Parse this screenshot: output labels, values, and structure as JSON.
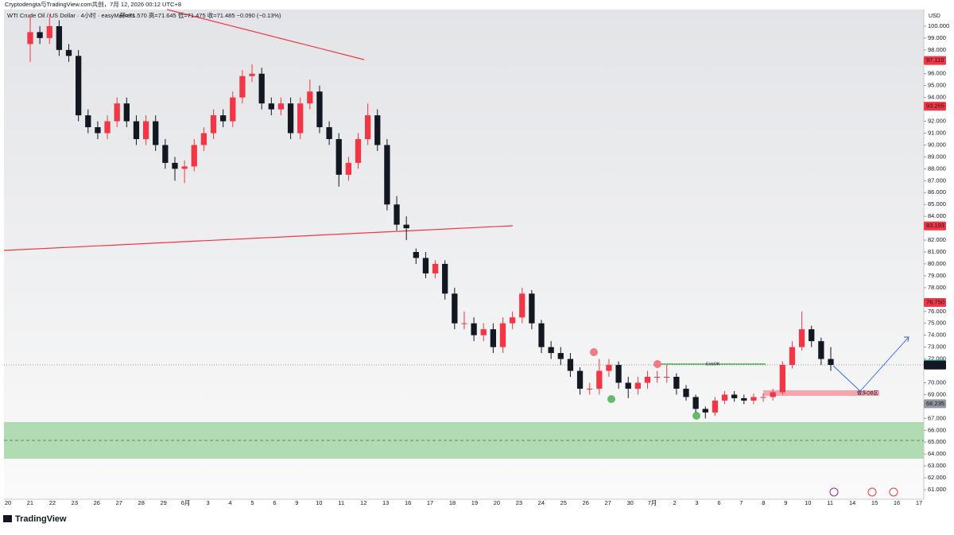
{
  "chart_data": {
    "type": "candlestick",
    "header": "Cryptodengta与TradingView.com共创，7月 12, 2026 00:12 UTC+8",
    "title": "WTI Crude Oil / US Dollar · 4小时 · easyMarkets",
    "ohlc_text": "开=71.570 高=71.645 低=71.475 收=71.485 −0.090 (−0.13%)",
    "currency": "USD",
    "brand": "TradingView",
    "up_color": "#f23645",
    "down_color": "#131722",
    "ylim": [
      60.2,
      101.4
    ],
    "yticks": [
      {
        "value": 61,
        "label": "61.000"
      },
      {
        "value": 62,
        "label": "62.000"
      },
      {
        "value": 63,
        "label": "63.000"
      },
      {
        "value": 64,
        "label": "64.000"
      },
      {
        "value": 65,
        "label": "65.000"
      },
      {
        "value": 66,
        "label": "66.000"
      },
      {
        "value": 67,
        "label": "67.000"
      },
      {
        "value": 69,
        "label": "69.000"
      },
      {
        "value": 70,
        "label": "70.000"
      },
      {
        "value": 72,
        "label": "72.000"
      },
      {
        "value": 73,
        "label": "73.000"
      },
      {
        "value": 74,
        "label": "74.000"
      },
      {
        "value": 75,
        "label": "75.000"
      },
      {
        "value": 76,
        "label": "76.000"
      },
      {
        "value": 78,
        "label": "78.000"
      },
      {
        "value": 79,
        "label": "79.000"
      },
      {
        "value": 80,
        "label": "80.000"
      },
      {
        "value": 81,
        "label": "81.000"
      },
      {
        "value": 82,
        "label": "82.000"
      },
      {
        "value": 84,
        "label": "84.000"
      },
      {
        "value": 85,
        "label": "85.000"
      },
      {
        "value": 86,
        "label": "86.000"
      },
      {
        "value": 87,
        "label": "87.000"
      },
      {
        "value": 88,
        "label": "88.000"
      },
      {
        "value": 89,
        "label": "89.000"
      },
      {
        "value": 90,
        "label": "90.000"
      },
      {
        "value": 91,
        "label": "91.000"
      },
      {
        "value": 92,
        "label": "92.000"
      },
      {
        "value": 94,
        "label": "94.000"
      },
      {
        "value": 95,
        "label": "95.000"
      },
      {
        "value": 96,
        "label": "96.000"
      },
      {
        "value": 98,
        "label": "98.000"
      },
      {
        "value": 99,
        "label": "99.000"
      },
      {
        "value": 100,
        "label": "100.000"
      }
    ],
    "price_labels": [
      {
        "value": 97.11,
        "label": "97.110",
        "color": "#f23645"
      },
      {
        "value": 93.265,
        "label": "93.265",
        "color": "#f23645"
      },
      {
        "value": 83.193,
        "label": "83.193",
        "color": "#f23645"
      },
      {
        "value": 76.75,
        "label": "76.750",
        "color": "#f23645"
      },
      {
        "value": 71.565,
        "label": "71.565",
        "color": "#22ab94"
      },
      {
        "value": 71.485,
        "label": "71.485",
        "color": "#131722"
      },
      {
        "value": 68.235,
        "label": "68.235",
        "color": "#9598a1"
      }
    ],
    "annotations": [
      "ErisOK",
      "做多OB区"
    ],
    "x_labels": [
      "20",
      "21",
      "22",
      "23",
      "26",
      "27",
      "28",
      "29",
      "6月",
      "3",
      "4",
      "5",
      "6",
      "9",
      "10",
      "11",
      "12",
      "13",
      "16",
      "17",
      "18",
      "19",
      "20",
      "23",
      "24",
      "25",
      "26",
      "27",
      "30",
      "7月",
      "2",
      "3",
      "6",
      "7",
      "8",
      "9",
      "10",
      "11",
      "14",
      "15",
      "16",
      "17"
    ],
    "open": [
      98.5,
      99.5,
      99.0,
      100.0,
      98.0,
      97.5,
      92.5,
      91.5,
      91.0,
      92.0,
      93.5,
      92.0,
      90.5,
      92.0,
      90.0,
      88.5,
      88.0,
      88.2,
      90.0,
      91.0,
      92.5,
      92.0,
      94.0,
      95.8,
      96.0,
      93.5,
      93.0,
      93.5,
      91.0,
      93.5,
      94.5,
      91.5,
      90.5,
      87.5,
      88.5,
      90.5,
      92.5,
      90.0,
      85.0,
      83.3,
      81.0,
      80.5,
      79.2,
      80.0,
      77.5,
      75.0,
      75.0,
      74.0,
      74.5,
      73.0,
      75.0,
      75.5,
      77.5,
      75.0,
      73.0,
      72.5,
      72.0,
      71.0,
      69.5,
      69.5,
      71.0,
      71.5,
      70.0,
      69.5,
      70.0,
      70.5,
      70.5,
      70.5,
      69.5,
      68.8,
      67.8,
      67.5,
      68.5,
      69.0,
      68.7,
      68.5,
      68.8,
      68.8,
      69.2,
      71.5,
      73.0,
      74.5,
      73.5,
      72.0
    ],
    "high": [
      101.0,
      100.0,
      101.0,
      100.5,
      98.5,
      98.0,
      93.0,
      92.0,
      92.5,
      94.0,
      94.0,
      92.5,
      92.5,
      92.5,
      90.5,
      89.0,
      88.7,
      90.5,
      91.5,
      93.0,
      93.0,
      94.5,
      96.3,
      96.8,
      96.5,
      94.0,
      94.0,
      94.0,
      94.0,
      95.5,
      95.0,
      92.0,
      91.0,
      89.0,
      91.0,
      93.5,
      93.0,
      90.5,
      85.7,
      84.0,
      81.3,
      81.0,
      80.3,
      80.3,
      78.0,
      76.0,
      75.5,
      75.0,
      75.0,
      75.5,
      76.0,
      78.0,
      77.8,
      75.3,
      73.5,
      73.0,
      72.5,
      71.3,
      70.0,
      72.0,
      72.0,
      71.8,
      70.5,
      70.5,
      71.0,
      71.0,
      71.5,
      70.8,
      69.8,
      69.0,
      68.0,
      68.8,
      69.3,
      69.3,
      69.0,
      69.1,
      69.1,
      69.5,
      71.8,
      73.5,
      76.0,
      74.8,
      73.8,
      73.0
    ],
    "low": [
      97.0,
      98.5,
      98.5,
      97.5,
      97.0,
      92.0,
      91.0,
      90.5,
      90.5,
      91.5,
      91.5,
      90.0,
      90.0,
      89.5,
      88.0,
      87.0,
      86.8,
      87.8,
      89.5,
      90.5,
      91.5,
      91.5,
      93.5,
      95.3,
      93.0,
      92.5,
      92.5,
      90.5,
      90.5,
      93.0,
      91.0,
      90.0,
      86.5,
      87.0,
      88.0,
      90.0,
      89.5,
      84.5,
      82.8,
      82.0,
      80.0,
      78.8,
      78.8,
      77.0,
      74.5,
      74.5,
      73.5,
      73.5,
      72.5,
      72.5,
      74.5,
      75.0,
      74.5,
      72.5,
      72.0,
      71.5,
      70.5,
      69.0,
      69.0,
      69.0,
      70.5,
      69.5,
      68.7,
      69.0,
      69.5,
      70.0,
      70.0,
      69.0,
      68.5,
      67.5,
      67.0,
      67.2,
      68.2,
      68.4,
      68.2,
      68.2,
      68.4,
      68.5,
      69.0,
      71.2,
      72.7,
      73.0,
      71.5,
      71.0
    ],
    "close": [
      99.5,
      99.0,
      100.0,
      98.0,
      97.5,
      92.5,
      91.5,
      91.0,
      92.0,
      93.5,
      92.0,
      90.5,
      92.0,
      90.0,
      88.5,
      88.0,
      88.2,
      90.0,
      91.0,
      92.5,
      92.0,
      94.0,
      95.8,
      96.0,
      93.5,
      93.0,
      93.5,
      91.0,
      93.5,
      94.5,
      91.5,
      90.5,
      87.5,
      88.5,
      90.5,
      92.5,
      90.0,
      85.0,
      83.3,
      83.0,
      80.5,
      79.2,
      80.0,
      77.5,
      75.0,
      75.0,
      74.0,
      74.5,
      73.0,
      75.0,
      75.5,
      77.5,
      75.0,
      73.0,
      72.5,
      72.0,
      71.0,
      69.5,
      69.5,
      71.0,
      71.5,
      70.0,
      69.5,
      70.0,
      70.5,
      70.5,
      70.5,
      69.5,
      68.8,
      67.8,
      67.5,
      68.5,
      69.0,
      68.7,
      68.5,
      68.8,
      68.8,
      69.2,
      71.5,
      73.0,
      74.5,
      73.5,
      72.0,
      71.5
    ]
  }
}
